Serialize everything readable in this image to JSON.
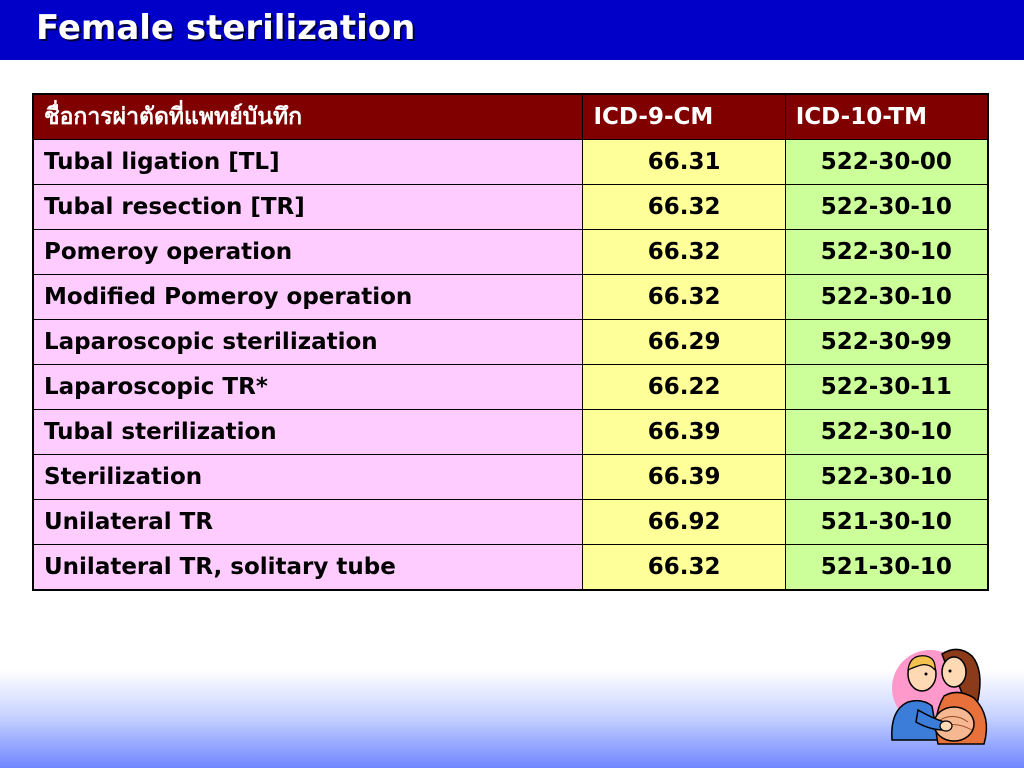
{
  "slide": {
    "title": "Female sterilization"
  },
  "table": {
    "headers": [
      "ชื่อการผ่าตัดที่แพทย์บันทึก",
      "ICD-9-CM",
      "ICD-10-TM"
    ],
    "rows": [
      {
        "name": "Tubal ligation [TL]",
        "icd9": "66.31",
        "icd10": "522-30-00"
      },
      {
        "name": "Tubal resection [TR]",
        "icd9": "66.32",
        "icd10": "522-30-10"
      },
      {
        "name": "Pomeroy operation",
        "icd9": "66.32",
        "icd10": "522-30-10"
      },
      {
        "name": "Modified Pomeroy operation",
        "icd9": "66.32",
        "icd10": "522-30-10"
      },
      {
        "name": "Laparoscopic sterilization",
        "icd9": "66.29",
        "icd10": "522-30-99"
      },
      {
        "name": "Laparoscopic TR*",
        "icd9": "66.22",
        "icd10": "522-30-11"
      },
      {
        "name": "Tubal sterilization",
        "icd9": "66.39",
        "icd10": "522-30-10"
      },
      {
        "name": "Sterilization",
        "icd9": "66.39",
        "icd10": "522-30-10"
      },
      {
        "name": "Unilateral TR",
        "icd9": "66.92",
        "icd10": "521-30-10"
      },
      {
        "name": "Unilateral TR, solitary tube",
        "icd9": "66.32",
        "icd10": "521-30-10"
      }
    ]
  },
  "colors": {
    "title_bar": "#0000c8",
    "header_bg": "#800000",
    "name_col": "#ffccff",
    "icd9_col": "#ffff99",
    "icd10_col": "#ccff99"
  },
  "clipart": {
    "icon": "expecting-couple-icon"
  }
}
